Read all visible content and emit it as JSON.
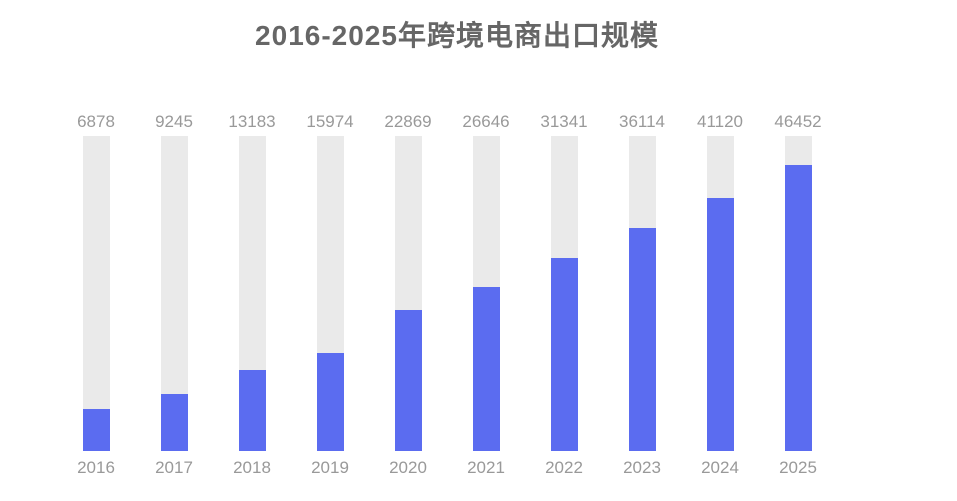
{
  "chart_data": {
    "type": "bar",
    "title": "2016-2025年跨境电商出口规模",
    "categories": [
      "2016",
      "2017",
      "2018",
      "2019",
      "2020",
      "2021",
      "2022",
      "2023",
      "2024",
      "2025"
    ],
    "values": [
      6878,
      9245,
      13183,
      15974,
      22869,
      26646,
      31341,
      36114,
      41120,
      46452
    ],
    "xlabel": "",
    "ylabel": "",
    "ylim": [
      0,
      51100
    ],
    "grid": false,
    "legend": "none",
    "value_label_position": "above-bar",
    "colors": {
      "bar_fill": "#5B6CF0",
      "bar_track": "#EAEAEA",
      "label": "#999999",
      "title": "#666666",
      "background": "#FFFFFF"
    }
  }
}
